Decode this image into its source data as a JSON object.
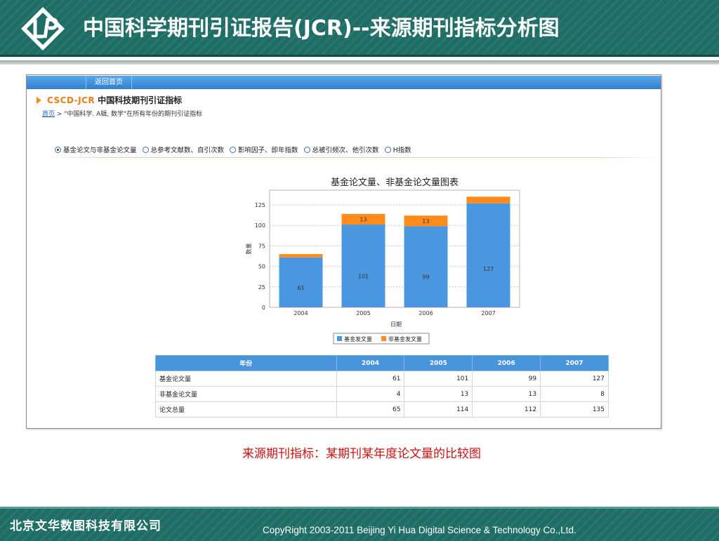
{
  "slide": {
    "title": "中国科学期刊引证报告(JCR)--来源期刊指标分析图",
    "caption": "来源期刊指标：某期刊某年度论文量的比较图",
    "footer_company": "北京文华数图科技有限公司",
    "footer_copyright": "CopyRight 2003-2011 Beijing Yi Hua Digital Science & Technology Co.,Ltd.",
    "logo_icon": "lp-diamond-logo-icon"
  },
  "app": {
    "nav_tab": "返回首页",
    "section_brand": "CSCD-JCR",
    "section_title": "中国科技期刊引证指标",
    "breadcrumb_home": "首页",
    "breadcrumb_rest": " > \"中国科学. A辑, 数学\"在所有年份的期刊引证指标",
    "radio_options": [
      {
        "label": "基金论文与非基金论文量",
        "selected": true
      },
      {
        "label": "总参考文献数、自引次数",
        "selected": false
      },
      {
        "label": "影响因子、即年指数",
        "selected": false
      },
      {
        "label": "总被引频次、他引次数",
        "selected": false
      },
      {
        "label": "H指数",
        "selected": false
      }
    ]
  },
  "chart_data": {
    "type": "bar",
    "stacked": true,
    "title": "基金论文量、非基金论文量图表",
    "xlabel": "日期",
    "ylabel": "数量",
    "categories": [
      "2004",
      "2005",
      "2006",
      "2007"
    ],
    "ylim": [
      0,
      143
    ],
    "yticks": [
      0,
      25,
      50,
      75,
      100,
      125
    ],
    "grid": true,
    "legend_position": "bottom",
    "series": [
      {
        "name": "基金发文量",
        "values": [
          61,
          101,
          99,
          127
        ],
        "color": "#4a97e0",
        "labels": [
          "61",
          "101",
          "99",
          "127"
        ]
      },
      {
        "name": "非基金发文量",
        "values": [
          4,
          13,
          13,
          8
        ],
        "color": "#ff8c1a",
        "labels": [
          "",
          "13",
          "13",
          ""
        ]
      }
    ]
  },
  "table": {
    "columns": [
      "年份",
      "2004",
      "2005",
      "2006",
      "2007"
    ],
    "rows": [
      {
        "label": "基金论文量",
        "values": [
          "61",
          "101",
          "99",
          "127"
        ]
      },
      {
        "label": "非基金论文量",
        "values": [
          "4",
          "13",
          "13",
          "8"
        ]
      },
      {
        "label": "论文总量",
        "values": [
          "65",
          "114",
          "112",
          "135"
        ]
      }
    ]
  }
}
